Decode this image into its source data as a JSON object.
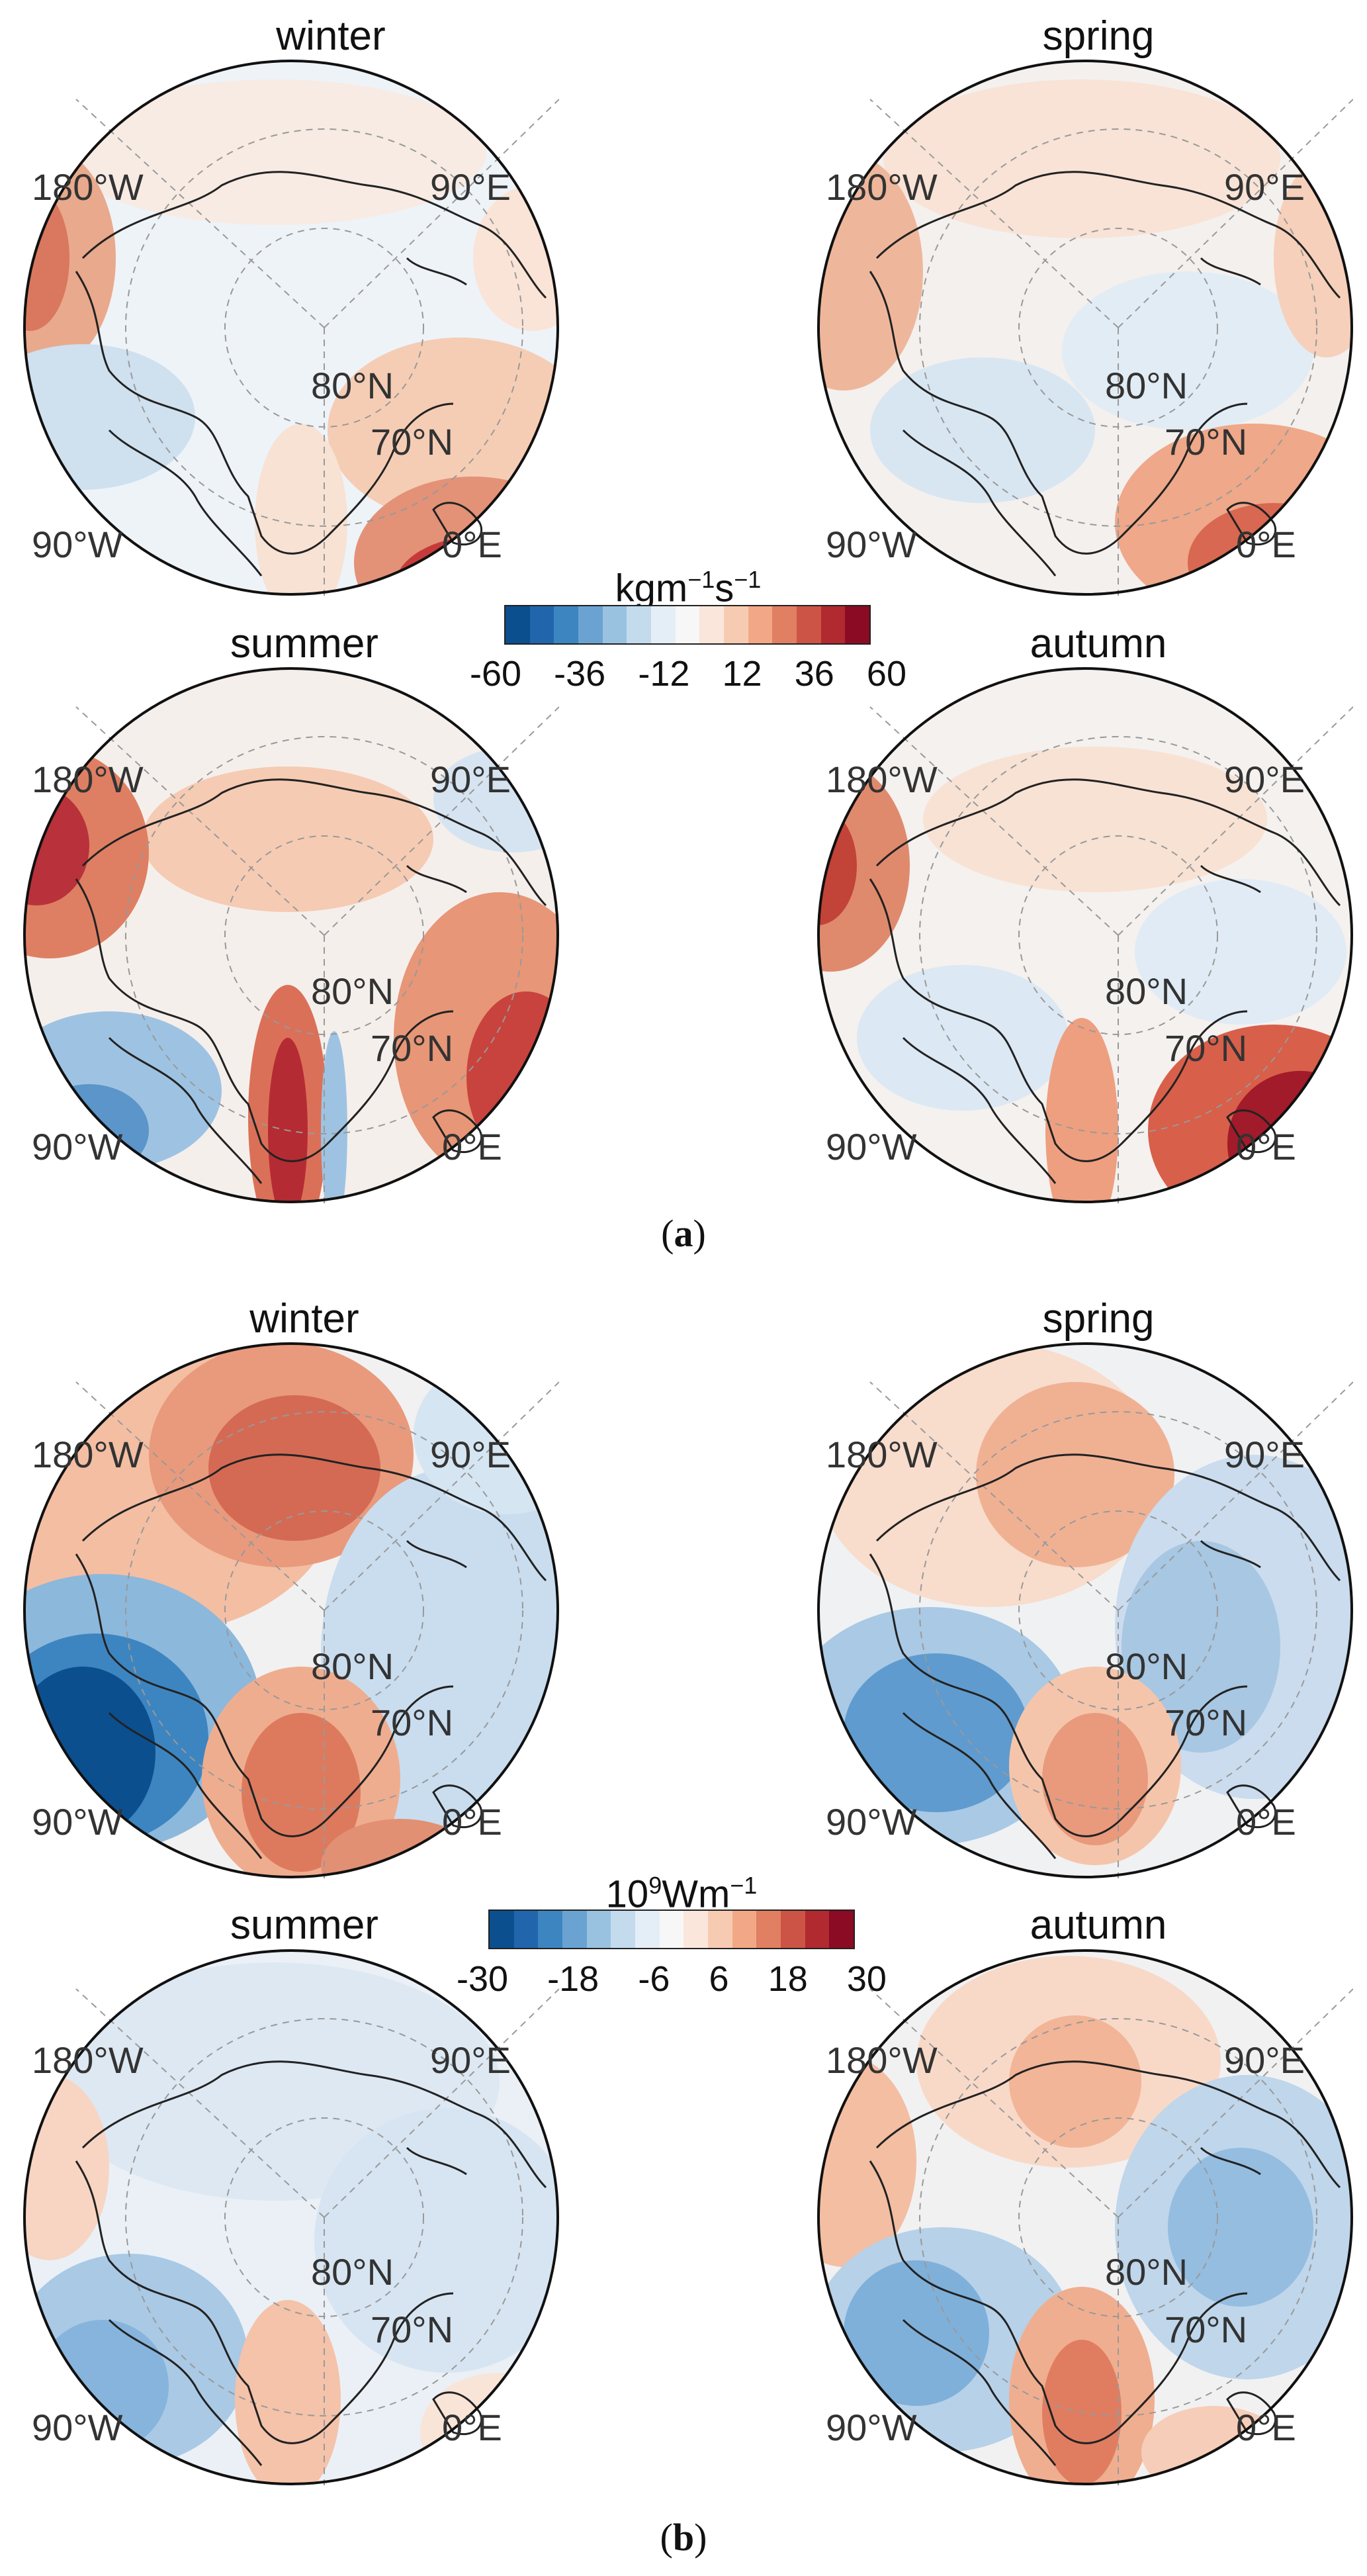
{
  "parts": {
    "a": {
      "label_open": "(",
      "label_letter": "a",
      "label_close": ")",
      "colorbar": {
        "unit_main": "kgm",
        "unit_exp1": "−1",
        "unit_s": "s",
        "unit_exp2": "−1",
        "ticks": [
          "-60",
          "-36",
          "-12",
          "12",
          "36",
          "60"
        ]
      },
      "panels": [
        {
          "season": "winter",
          "lon_w": "180°W",
          "lon_e": "90°E",
          "lat_80": "80°N",
          "lat_70": "70°N",
          "lon_90w": "90°W",
          "lon_0": "0°E"
        },
        {
          "season": "spring",
          "lon_w": "180°W",
          "lon_e": "90°E",
          "lat_80": "80°N",
          "lat_70": "70°N",
          "lon_90w": "90°W",
          "lon_0": "0°E"
        },
        {
          "season": "summer",
          "lon_w": "180°W",
          "lon_e": "90°E",
          "lat_80": "80°N",
          "lat_70": "70°N",
          "lon_90w": "90°W",
          "lon_0": "0°E"
        },
        {
          "season": "autumn",
          "lon_w": "180°W",
          "lon_e": "90°E",
          "lat_80": "80°N",
          "lat_70": "70°N",
          "lon_90w": "90°W",
          "lon_0": "0°E"
        }
      ]
    },
    "b": {
      "label_open": "(",
      "label_letter": "b",
      "label_close": ")",
      "colorbar": {
        "unit_pre": "10",
        "unit_exp": "9",
        "unit_main": "Wm",
        "unit_exp2": "−1",
        "ticks": [
          "-30",
          "-18",
          "-6",
          "6",
          "18",
          "30"
        ]
      },
      "panels": [
        {
          "season": "winter",
          "lon_w": "180°W",
          "lon_e": "90°E",
          "lat_80": "80°N",
          "lat_70": "70°N",
          "lon_90w": "90°W",
          "lon_0": "0°E"
        },
        {
          "season": "spring",
          "lon_w": "180°W",
          "lon_e": "90°E",
          "lat_80": "80°N",
          "lat_70": "70°N",
          "lon_90w": "90°W",
          "lon_0": "0°E"
        },
        {
          "season": "summer",
          "lon_w": "180°W",
          "lon_e": "90°E",
          "lat_80": "80°N",
          "lat_70": "70°N",
          "lon_90w": "90°W",
          "lon_0": "0°E"
        },
        {
          "season": "autumn",
          "lon_w": "180°W",
          "lon_e": "90°E",
          "lat_80": "80°N",
          "lat_70": "70°N",
          "lon_90w": "90°W",
          "lon_0": "0°E"
        }
      ]
    }
  },
  "colors": {
    "ramp": [
      "#0b4f8f",
      "#2166ac",
      "#3d85c0",
      "#6aa3d1",
      "#99c2e1",
      "#c4dbee",
      "#e4eef7",
      "#f7f7f7",
      "#fae6da",
      "#f7cbb2",
      "#f2a886",
      "#e07f62",
      "#cc5446",
      "#b02a30",
      "#8a0b23"
    ]
  }
}
